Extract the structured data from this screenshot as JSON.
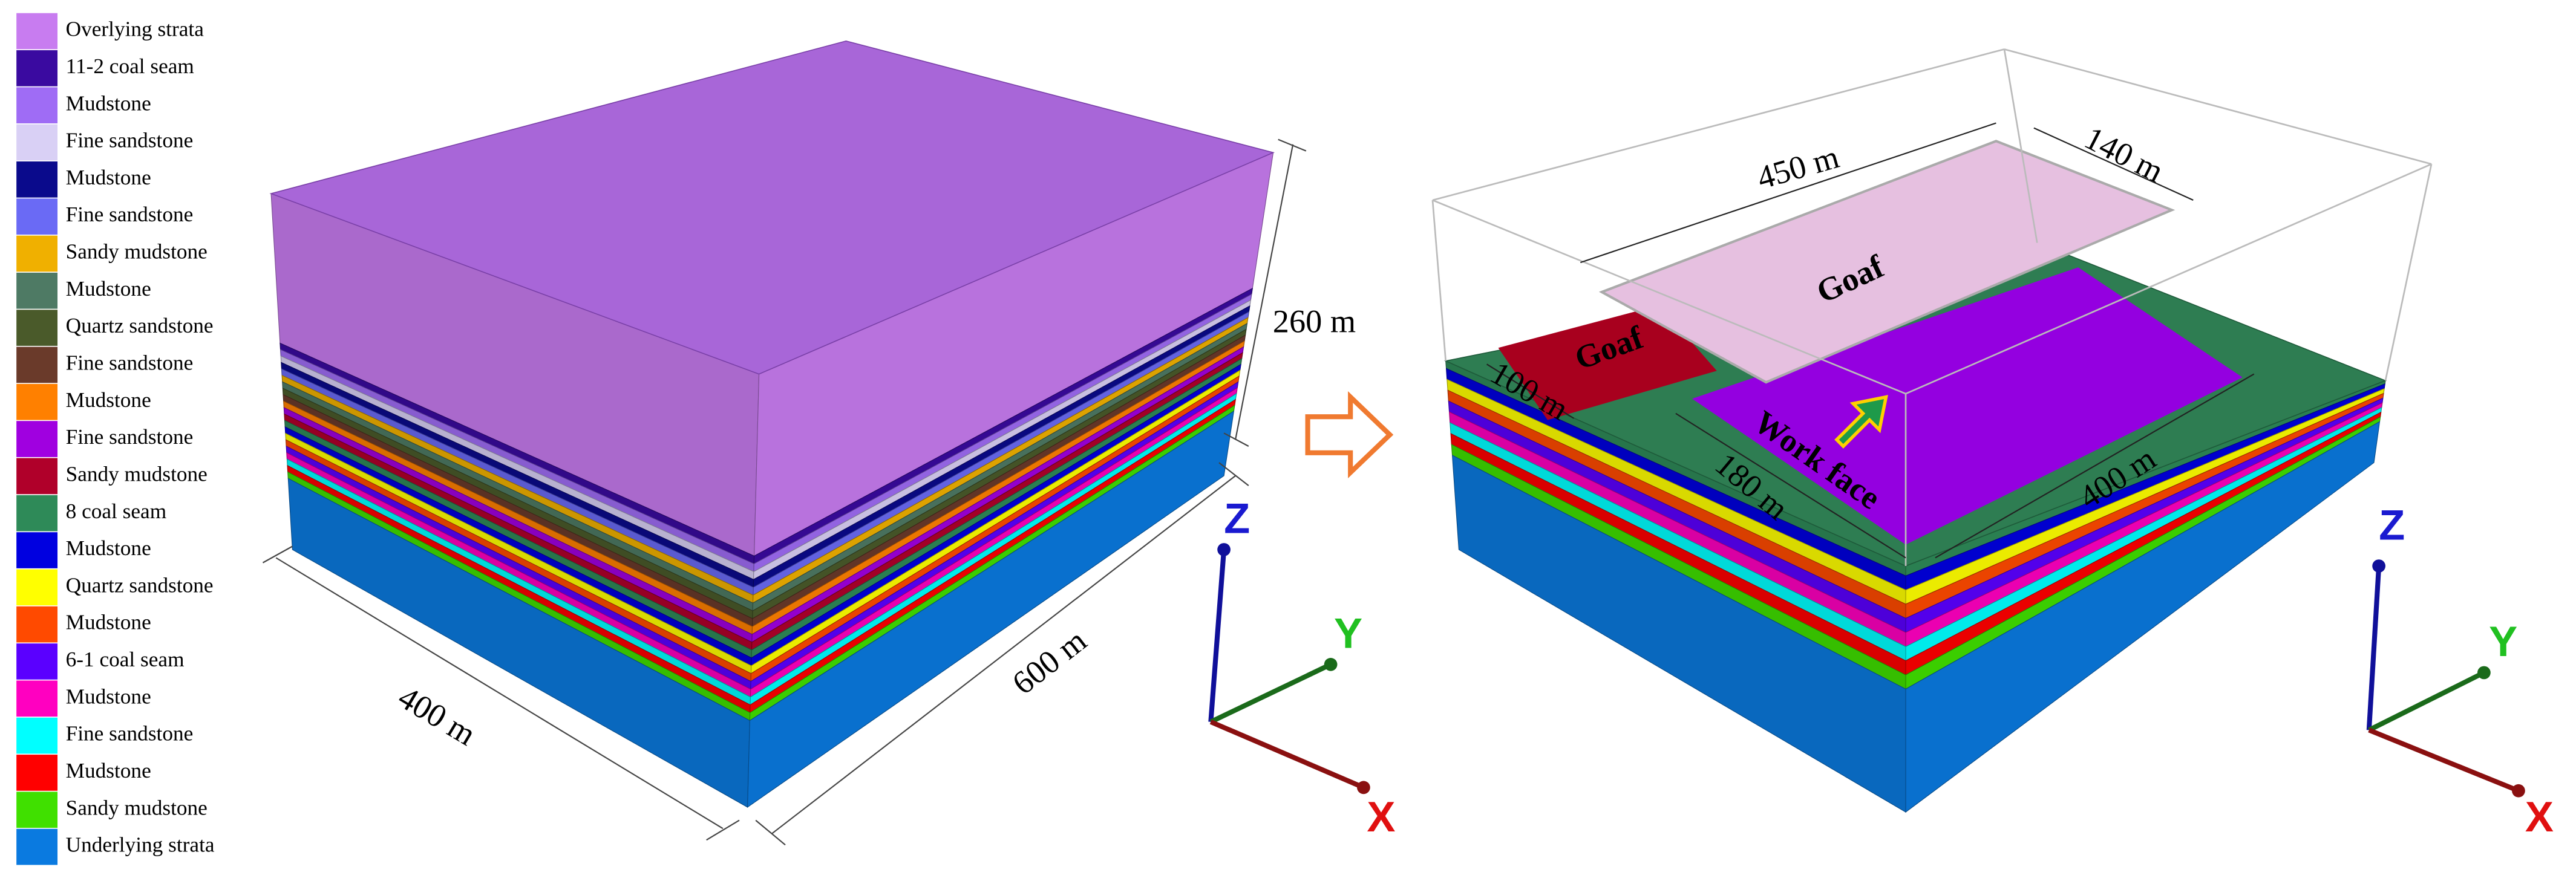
{
  "legend": [
    {
      "label": "Overlying strata",
      "color": "#c87cf0"
    },
    {
      "label": "11-2 coal seam",
      "color": "#3a0aa0"
    },
    {
      "label": "Mudstone",
      "color": "#9f6cf5"
    },
    {
      "label": "Fine sandstone",
      "color": "#d9d0f5"
    },
    {
      "label": "Mudstone",
      "color": "#0a0a8c"
    },
    {
      "label": "Fine sandstone",
      "color": "#6a6af5"
    },
    {
      "label": "Sandy mudstone",
      "color": "#f0b000"
    },
    {
      "label": "Mudstone",
      "color": "#4e7a64"
    },
    {
      "label": "Quartz sandstone",
      "color": "#4a5a2a"
    },
    {
      "label": "Fine sandstone",
      "color": "#6a3a2a"
    },
    {
      "label": "Mudstone",
      "color": "#ff8000"
    },
    {
      "label": "Fine sandstone",
      "color": "#a000e0"
    },
    {
      "label": "Sandy mudstone",
      "color": "#b0002a"
    },
    {
      "label": "8 coal seam",
      "color": "#2e8a58"
    },
    {
      "label": "Mudstone",
      "color": "#0000e0"
    },
    {
      "label": "Quartz sandstone",
      "color": "#ffff00"
    },
    {
      "label": "Mudstone",
      "color": "#ff4a00"
    },
    {
      "label": "6-1 coal seam",
      "color": "#5a00ff"
    },
    {
      "label": "Mudstone",
      "color": "#ff00c0"
    },
    {
      "label": "Fine sandstone",
      "color": "#00ffff"
    },
    {
      "label": "Mudstone",
      "color": "#ff0000"
    },
    {
      "label": "Sandy mudstone",
      "color": "#40e000"
    },
    {
      "label": "Underlying strata",
      "color": "#0a7ae0"
    }
  ],
  "left_model": {
    "height": "260 m",
    "width": "400 m",
    "length": "600 m"
  },
  "right_model": {
    "goaf_length": "450 m",
    "goaf_width": "140 m",
    "goaf_pillar": "100 m",
    "face_width": "180 m",
    "face_length": "400 m",
    "goaf_label_1": "Goaf",
    "goaf_label_2": "Goaf",
    "workface_label": "Work face"
  },
  "axes": {
    "x": "X",
    "y": "Y",
    "z": "Z"
  }
}
